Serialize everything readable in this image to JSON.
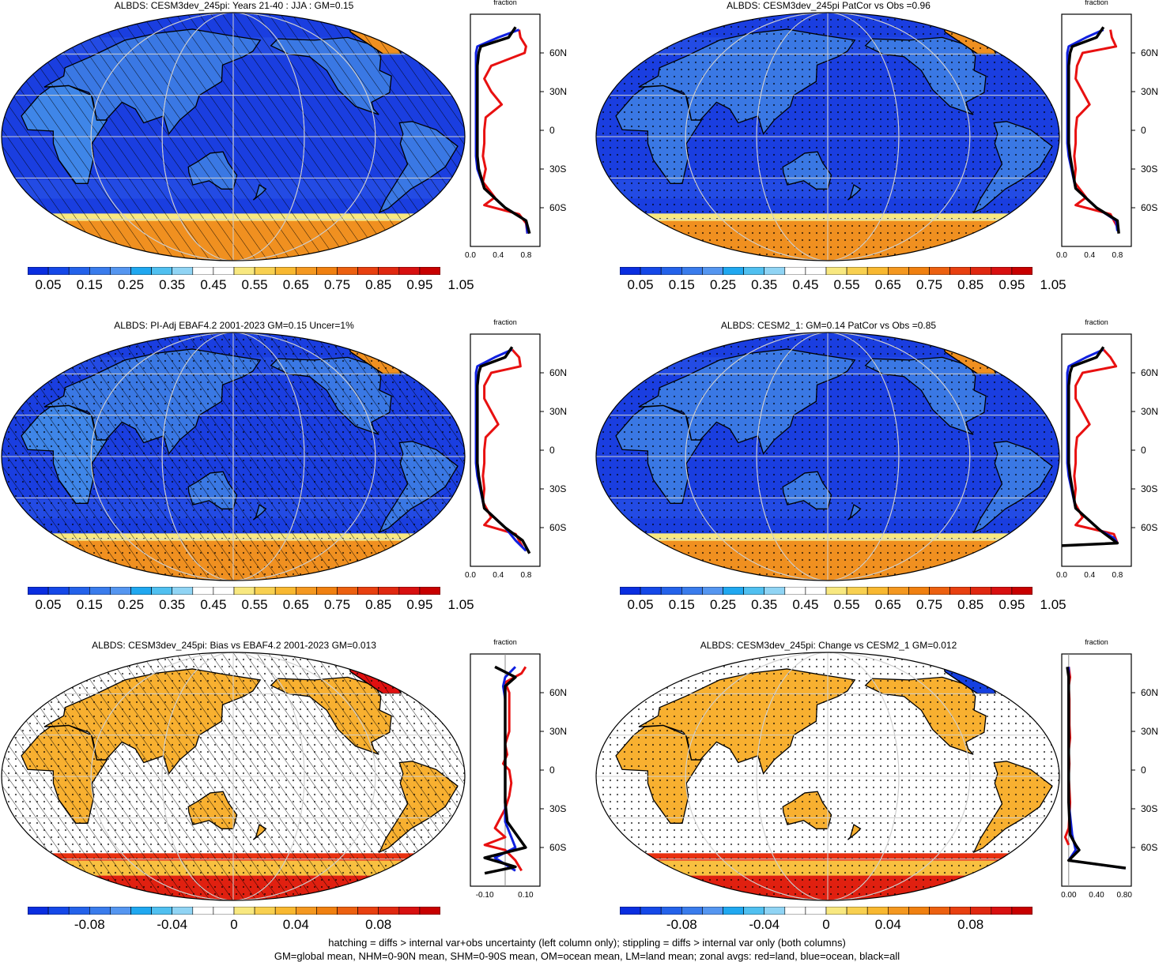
{
  "panels": [
    {
      "title": "ALBDS: CESM3dev_245pi: Years 21-40 : JJA : GM=0.15",
      "kind": "abs",
      "hatch": true,
      "stipple": false,
      "zx_ticks": [
        "0.0",
        "0.4",
        "0.8"
      ]
    },
    {
      "title": "ALBDS: CESM3dev_245pi PatCor vs Obs =0.96",
      "kind": "abs",
      "hatch": false,
      "stipple": true,
      "zx_ticks": [
        "0.0",
        "0.4",
        "0.8"
      ]
    },
    {
      "title": "ALBDS: PI-Adj EBAF4.2 2001-2023 GM=0.15 Uncer=1%",
      "kind": "abs",
      "hatch": true,
      "stipple": true,
      "zx_ticks": [
        "0.0",
        "0.4",
        "0.8"
      ]
    },
    {
      "title": "ALBDS: CESM2_1: GM=0.14 PatCor vs Obs =0.85",
      "kind": "abs",
      "hatch": false,
      "stipple": true,
      "zx_ticks": [
        "0.0",
        "0.4",
        "0.8"
      ]
    },
    {
      "title": "ALBDS: CESM3dev_245pi: Bias vs EBAF4.2 2001-2023 GM=0.013",
      "kind": "diff",
      "hatch": true,
      "stipple": true,
      "zx_ticks": [
        "-0.10",
        "0.10"
      ]
    },
    {
      "title": "ALBDS: CESM3dev_245pi: Change vs CESM2_1 GM=0.012",
      "kind": "diff",
      "hatch": false,
      "stipple": true,
      "zx_ticks": [
        "0.00",
        "0.40",
        "0.80"
      ]
    }
  ],
  "zonal_title": "fraction",
  "lat_labels": [
    "60N",
    "30N",
    "0",
    "30S",
    "60S"
  ],
  "colorbar_abs": {
    "labels": [
      "0.05",
      "0.15",
      "0.25",
      "0.35",
      "0.45",
      "0.55",
      "0.65",
      "0.75",
      "0.85",
      "0.95",
      "1.05"
    ],
    "colors": [
      "#0a2ee0",
      "#1548e8",
      "#2462ea",
      "#3a7cec",
      "#5596f0",
      "#20a8f0",
      "#50c0f0",
      "#90d4f4",
      "#ffffff",
      "#ffffff",
      "#f8e880",
      "#f8d050",
      "#f8b830",
      "#f49820",
      "#f08010",
      "#ec6010",
      "#e84010",
      "#e02810",
      "#d81010",
      "#c80000"
    ]
  },
  "colorbar_diff": {
    "labels": [
      "-0.08",
      "-0.04",
      "0",
      "0.04",
      "0.08"
    ],
    "colors": [
      "#0a2ee0",
      "#1548e8",
      "#2462ea",
      "#3a7cec",
      "#5596f0",
      "#20a8f0",
      "#50c0f0",
      "#90d4f4",
      "#ffffff",
      "#ffffff",
      "#f8e880",
      "#f8d050",
      "#f8b830",
      "#f49820",
      "#f08010",
      "#ec6010",
      "#e84010",
      "#e02810",
      "#d81010",
      "#c80000"
    ]
  },
  "footnote_line1": "hatching = diffs > internal var+obs uncertainty (left column only); stippling = diffs > internal var only (both columns)",
  "footnote_line2": "GM=global mean, NHM=0-90N mean, SHM=0-90S mean, OM=ocean mean, LM=land mean; zonal avgs: red=land, blue=ocean, black=all",
  "colors": {
    "land": "#e81010",
    "ocean": "#1020e0",
    "all": "#000000"
  },
  "chart_data": [
    {
      "type": "heatmap",
      "title": "ALBDS: CESM3dev_245pi: Years 21-40 : JJA : GM=0.15",
      "xlabel": "fraction",
      "ylim": [
        -90,
        90
      ],
      "series": [
        {
          "name": "land",
          "x": [
            0.7,
            0.72,
            0.8,
            0.78,
            0.3,
            0.2,
            0.3,
            0.45,
            0.22,
            0.2,
            0.2,
            0.18,
            0.22,
            0.18,
            0.35,
            0.2,
            0.7,
            0.8,
            0.82
          ],
          "y": [
            78,
            72,
            65,
            60,
            50,
            40,
            30,
            20,
            10,
            0,
            -10,
            -20,
            -30,
            -40,
            -52,
            -58,
            -65,
            -72,
            -80
          ]
        },
        {
          "name": "ocean",
          "x": [
            0.7,
            0.4,
            0.1,
            0.08,
            0.08,
            0.08,
            0.08,
            0.08,
            0.08,
            0.08,
            0.08,
            0.08,
            0.1,
            0.2,
            0.5,
            0.8,
            0.82
          ],
          "y": [
            78,
            72,
            65,
            60,
            50,
            40,
            30,
            20,
            10,
            0,
            -10,
            -20,
            -30,
            -45,
            -60,
            -70,
            -80
          ]
        },
        {
          "name": "all",
          "x": [
            0.65,
            0.55,
            0.15,
            0.12,
            0.1,
            0.1,
            0.1,
            0.1,
            0.1,
            0.1,
            0.1,
            0.1,
            0.12,
            0.2,
            0.5,
            0.8,
            0.85
          ],
          "y": [
            80,
            72,
            65,
            60,
            50,
            40,
            30,
            20,
            10,
            0,
            -10,
            -20,
            -30,
            -45,
            -60,
            -70,
            -80
          ]
        }
      ]
    },
    {
      "type": "heatmap",
      "title": "ALBDS: CESM3dev_245pi PatCor vs Obs =0.96",
      "xlabel": "fraction",
      "ylim": [
        -90,
        90
      ],
      "series": [
        {
          "name": "land",
          "x": [
            0.7,
            0.72,
            0.78,
            0.3,
            0.22,
            0.2,
            0.3,
            0.4,
            0.22,
            0.2,
            0.2,
            0.18,
            0.2,
            0.18,
            0.35,
            0.2,
            0.7,
            0.8
          ],
          "y": [
            78,
            72,
            65,
            60,
            50,
            40,
            30,
            20,
            10,
            0,
            -10,
            -20,
            -30,
            -40,
            -52,
            -58,
            -65,
            -75
          ]
        },
        {
          "name": "ocean",
          "x": [
            0.6,
            0.35,
            0.1,
            0.08,
            0.08,
            0.08,
            0.08,
            0.08,
            0.08,
            0.08,
            0.08,
            0.1,
            0.2,
            0.5,
            0.78,
            0.8
          ],
          "y": [
            78,
            72,
            65,
            60,
            50,
            40,
            30,
            20,
            10,
            0,
            -10,
            -20,
            -45,
            -60,
            -70,
            -78
          ]
        },
        {
          "name": "all",
          "x": [
            0.6,
            0.5,
            0.15,
            0.12,
            0.1,
            0.1,
            0.1,
            0.1,
            0.1,
            0.1,
            0.1,
            0.12,
            0.2,
            0.5,
            0.8,
            0.82
          ],
          "y": [
            80,
            72,
            65,
            60,
            50,
            40,
            30,
            20,
            10,
            0,
            -10,
            -20,
            -45,
            -60,
            -70,
            -80
          ]
        }
      ]
    },
    {
      "type": "heatmap",
      "title": "ALBDS: PI-Adj EBAF4.2 2001-2023 GM=0.15 Uncer=1%",
      "xlabel": "fraction",
      "ylim": [
        -90,
        90
      ],
      "series": [
        {
          "name": "land",
          "x": [
            0.6,
            0.7,
            0.72,
            0.3,
            0.2,
            0.2,
            0.3,
            0.4,
            0.22,
            0.2,
            0.2,
            0.18,
            0.2,
            0.18,
            0.3,
            0.2,
            0.65,
            0.75
          ],
          "y": [
            78,
            72,
            65,
            60,
            50,
            40,
            30,
            20,
            10,
            0,
            -10,
            -20,
            -30,
            -40,
            -52,
            -58,
            -65,
            -75
          ]
        },
        {
          "name": "ocean",
          "x": [
            0.6,
            0.35,
            0.1,
            0.08,
            0.08,
            0.08,
            0.08,
            0.08,
            0.08,
            0.08,
            0.08,
            0.1,
            0.2,
            0.5,
            0.65,
            0.8
          ],
          "y": [
            78,
            72,
            65,
            60,
            50,
            40,
            30,
            20,
            10,
            0,
            -10,
            -20,
            -45,
            -60,
            -70,
            -78
          ]
        },
        {
          "name": "all",
          "x": [
            0.6,
            0.5,
            0.15,
            0.12,
            0.1,
            0.1,
            0.1,
            0.1,
            0.1,
            0.1,
            0.1,
            0.12,
            0.2,
            0.5,
            0.75,
            0.85
          ],
          "y": [
            80,
            72,
            65,
            60,
            50,
            40,
            30,
            20,
            10,
            0,
            -10,
            -20,
            -45,
            -60,
            -70,
            -80
          ]
        }
      ]
    },
    {
      "type": "heatmap",
      "title": "ALBDS: CESM2_1: GM=0.14 PatCor vs Obs =0.85",
      "xlabel": "fraction",
      "ylim": [
        -90,
        90
      ],
      "series": [
        {
          "name": "land",
          "x": [
            0.6,
            0.7,
            0.78,
            0.3,
            0.2,
            0.2,
            0.3,
            0.4,
            0.22,
            0.2,
            0.2,
            0.18,
            0.2,
            0.18,
            0.3,
            0.2,
            0.75,
            0.8
          ],
          "y": [
            78,
            72,
            65,
            60,
            50,
            40,
            30,
            20,
            10,
            0,
            -10,
            -20,
            -30,
            -40,
            -52,
            -58,
            -65,
            -72
          ]
        },
        {
          "name": "ocean",
          "x": [
            0.6,
            0.35,
            0.1,
            0.08,
            0.08,
            0.08,
            0.08,
            0.08,
            0.08,
            0.08,
            0.08,
            0.1,
            0.2,
            0.55,
            0.75,
            0.8
          ],
          "y": [
            78,
            72,
            65,
            60,
            50,
            40,
            30,
            20,
            10,
            0,
            -10,
            -20,
            -45,
            -62,
            -68,
            -72
          ]
        },
        {
          "name": "all",
          "x": [
            0.6,
            0.5,
            0.15,
            0.12,
            0.1,
            0.1,
            0.1,
            0.1,
            0.1,
            0.1,
            0.1,
            0.12,
            0.2,
            0.55,
            0.8,
            0.0
          ],
          "y": [
            80,
            72,
            65,
            60,
            50,
            40,
            30,
            20,
            10,
            0,
            -10,
            -20,
            -45,
            -62,
            -72,
            -74
          ]
        }
      ]
    },
    {
      "type": "heatmap",
      "title": "ALBDS: CESM3dev_245pi: Bias vs EBAF4.2 2001-2023 GM=0.013",
      "xlabel": "fraction",
      "ylim": [
        -90,
        90
      ],
      "series": [
        {
          "name": "land",
          "x": [
            0.1,
            0.08,
            0.0,
            0.02,
            0.02,
            0.02,
            0.02,
            0.0,
            0.01,
            -0.01,
            0.02,
            0.03,
            0.02,
            0.0,
            -0.05,
            0.0,
            -0.1,
            0.0,
            0.05,
            0.08
          ],
          "y": [
            80,
            75,
            68,
            60,
            50,
            40,
            30,
            20,
            12,
            5,
            0,
            -10,
            -20,
            -30,
            -45,
            -52,
            -58,
            -62,
            -70,
            -78
          ]
        },
        {
          "name": "ocean",
          "x": [
            0.05,
            0.0,
            -0.01,
            0.0,
            0.0,
            0.0,
            0.0,
            0.0,
            0.0,
            0.0,
            0.0,
            0.0,
            0.0,
            0.05,
            -0.05,
            0.05
          ],
          "y": [
            80,
            72,
            65,
            55,
            45,
            35,
            25,
            15,
            5,
            -5,
            -15,
            -25,
            -40,
            -60,
            -68,
            -78
          ]
        },
        {
          "name": "all",
          "x": [
            -0.05,
            0.05,
            0.0,
            0.0,
            0.0,
            0.0,
            0.0,
            0.0,
            0.0,
            0.0,
            0.0,
            0.0,
            0.01,
            0.1,
            -0.1,
            0.05,
            -0.1
          ],
          "y": [
            80,
            72,
            65,
            55,
            45,
            35,
            25,
            15,
            5,
            -5,
            -15,
            -25,
            -40,
            -60,
            -68,
            -75,
            -80
          ]
        }
      ]
    },
    {
      "type": "heatmap",
      "title": "ALBDS: CESM3dev_245pi: Change vs CESM2_1 GM=0.012",
      "xlabel": "fraction",
      "ylim": [
        -90,
        90
      ],
      "series": [
        {
          "name": "land",
          "x": [
            0.0,
            0.02,
            0.0,
            0.01,
            0.01,
            0.01,
            0.02,
            0.0,
            0.01,
            0.0,
            0.01,
            0.02,
            0.01,
            0.0,
            -0.05,
            0.0
          ],
          "y": [
            80,
            72,
            65,
            55,
            45,
            35,
            25,
            15,
            5,
            -5,
            -15,
            -25,
            -35,
            -45,
            -52,
            -58
          ]
        },
        {
          "name": "ocean",
          "x": [
            0.0,
            0.0,
            0.0,
            0.0,
            0.0,
            0.0,
            0.0,
            0.0,
            0.0,
            0.0,
            0.0,
            0.05,
            0.1,
            0.0,
            0.8
          ],
          "y": [
            80,
            72,
            65,
            55,
            45,
            35,
            25,
            15,
            5,
            -5,
            -25,
            -50,
            -62,
            -70,
            -76
          ]
        },
        {
          "name": "all",
          "x": [
            -0.02,
            0.0,
            0.0,
            0.0,
            0.0,
            0.0,
            0.0,
            0.0,
            0.0,
            0.0,
            0.0,
            0.02,
            0.1,
            0.15,
            0.0,
            0.82
          ],
          "y": [
            80,
            72,
            65,
            55,
            45,
            35,
            25,
            15,
            5,
            -5,
            -25,
            -50,
            -58,
            -62,
            -70,
            -76
          ]
        }
      ]
    }
  ]
}
